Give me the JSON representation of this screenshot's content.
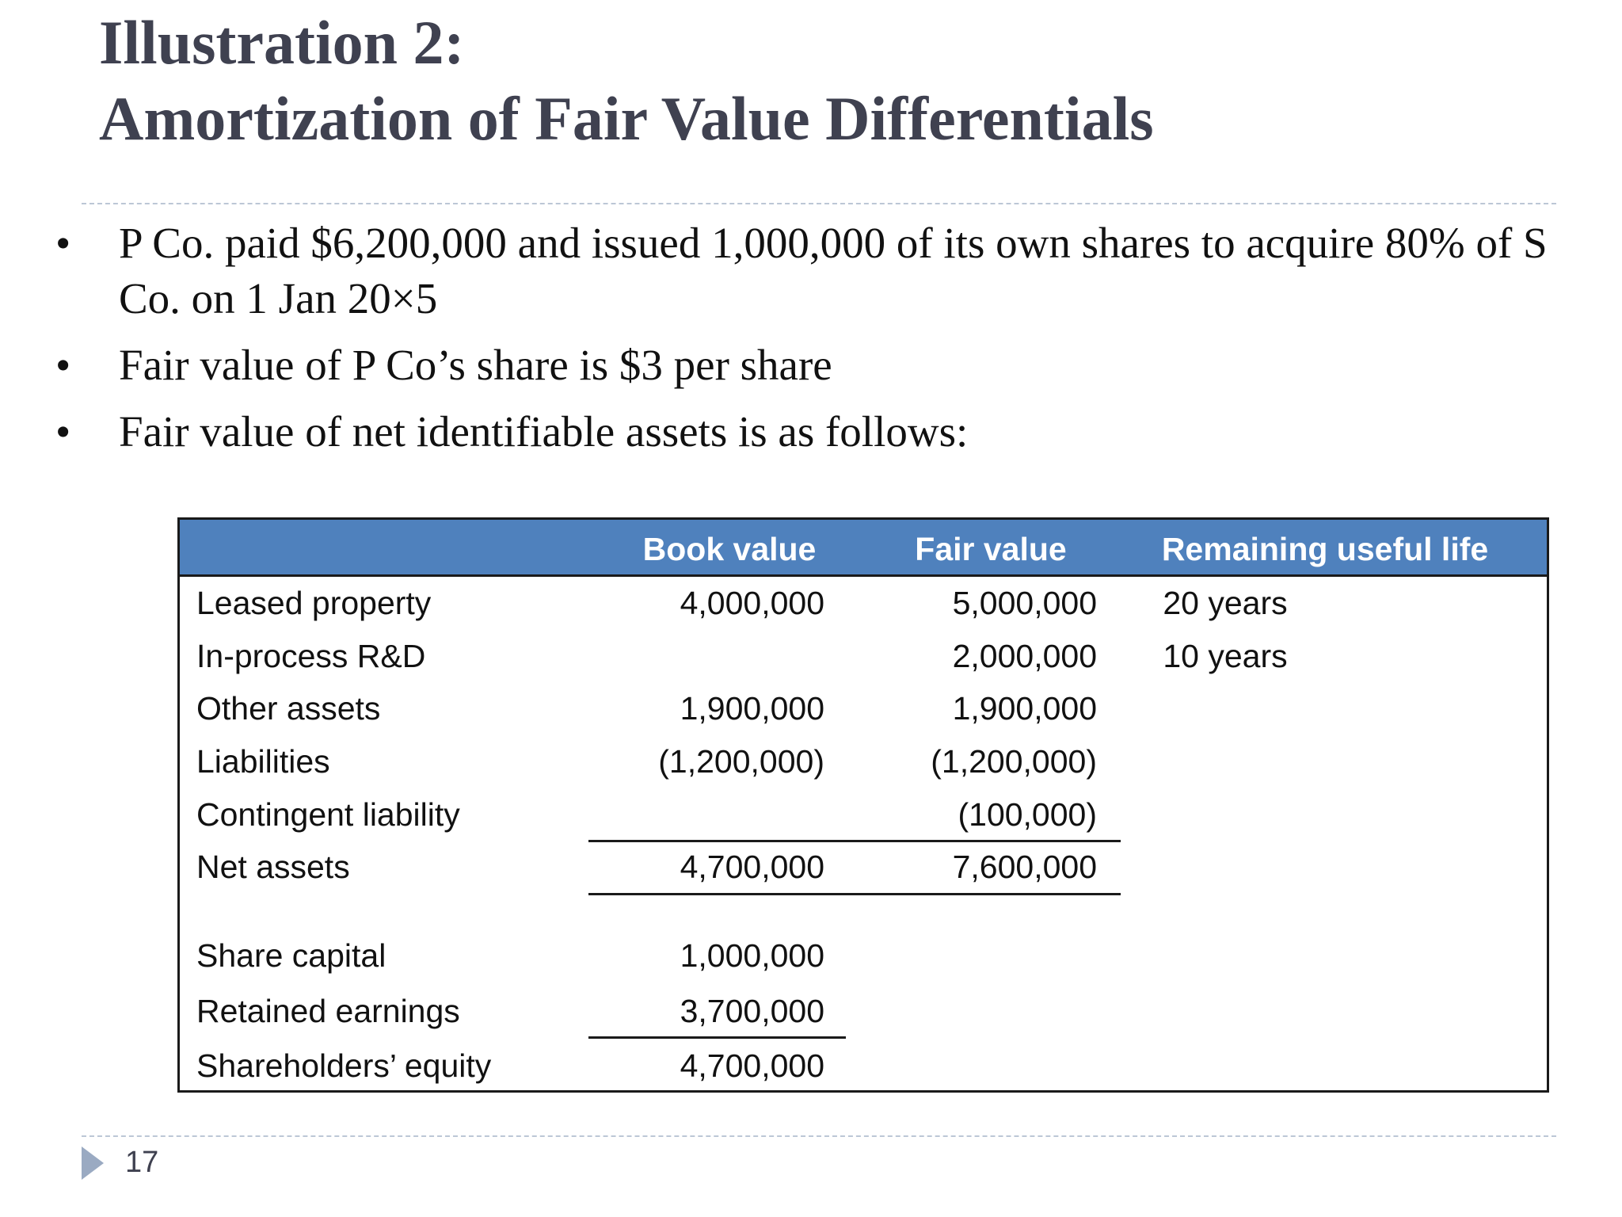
{
  "slide": {
    "title_line1": "Illustration 2:",
    "title_line2": "Amortization of Fair Value Differentials",
    "bullet_symbol": "•",
    "bullets": [
      "P Co. paid $6,200,000 and issued 1,000,000 of its own shares to acquire 80% of S Co. on 1 Jan 20×5",
      "Fair value of P Co’s share is $3 per share",
      "Fair value of net identifiable assets is as follows:"
    ],
    "page_number": "17"
  },
  "table": {
    "headers": {
      "label": "",
      "book": "Book value",
      "fair": "Fair value",
      "life": "Remaining useful life"
    },
    "rows": [
      {
        "label": "Leased property",
        "book": "4,000,000",
        "fair": "5,000,000",
        "life": "20 years"
      },
      {
        "label": "In-process R&D",
        "book": "",
        "fair": "2,000,000",
        "life": "10 years"
      },
      {
        "label": "Other assets",
        "book": "1,900,000",
        "fair": "1,900,000",
        "life": ""
      },
      {
        "label": "Liabilities",
        "book": "(1,200,000)",
        "fair": "(1,200,000)",
        "life": ""
      },
      {
        "label": "Contingent liability",
        "book": "",
        "fair": "(100,000)",
        "life": ""
      },
      {
        "label": "Net assets",
        "book": "4,700,000",
        "fair": "7,600,000",
        "life": ""
      },
      {
        "label": "Share capital",
        "book": "1,000,000",
        "fair": "",
        "life": ""
      },
      {
        "label": "Retained earnings",
        "book": "3,700,000",
        "fair": "",
        "life": ""
      },
      {
        "label": "Shareholders’ equity",
        "book": "4,700,000",
        "fair": "",
        "life": ""
      }
    ]
  },
  "colors": {
    "header_fill": "#4f81bd",
    "title_text": "#3f4150",
    "divider": "#bcc7d6"
  }
}
